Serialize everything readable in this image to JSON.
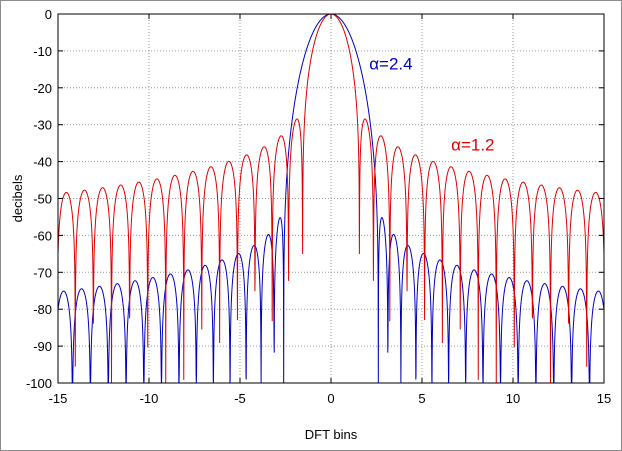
{
  "chart_data": {
    "type": "line",
    "title": "",
    "xlabel": "DFT bins",
    "ylabel": "decibels",
    "xlim": [
      -15,
      15
    ],
    "ylim": [
      -100,
      0
    ],
    "x_ticks": [
      -15,
      -10,
      -5,
      0,
      5,
      10,
      15
    ],
    "y_ticks": [
      0,
      -10,
      -20,
      -30,
      -40,
      -50,
      -60,
      -70,
      -80,
      -90,
      -100
    ],
    "grid": true,
    "series": [
      {
        "name": "α=2.4",
        "color": "#0000c0",
        "alpha": 2.4,
        "main_lobe_null_bins": 2.6,
        "sidelobe_peaks_db": [
          {
            "x": 3.2,
            "y": -56
          },
          {
            "x": 4.1,
            "y": -61
          },
          {
            "x": 5.1,
            "y": -64
          },
          {
            "x": 6.1,
            "y": -66
          },
          {
            "x": 7.1,
            "y": -68
          },
          {
            "x": 8.1,
            "y": -69
          },
          {
            "x": 10.1,
            "y": -71
          },
          {
            "x": 12.1,
            "y": -73
          },
          {
            "x": 15.0,
            "y": -75
          }
        ]
      },
      {
        "name": "α=1.2",
        "color": "#e00000",
        "alpha": 1.2,
        "main_lobe_null_bins": 1.6,
        "sidelobe_peaks_db": [
          {
            "x": 2.1,
            "y": -31
          },
          {
            "x": 3.1,
            "y": -36
          },
          {
            "x": 4.1,
            "y": -39
          },
          {
            "x": 5.1,
            "y": -41
          },
          {
            "x": 6.1,
            "y": -43
          },
          {
            "x": 8.1,
            "y": -45
          },
          {
            "x": 10.1,
            "y": -46
          },
          {
            "x": 12.1,
            "y": -47
          },
          {
            "x": 15.0,
            "y": -48
          }
        ]
      }
    ],
    "annotations": [
      {
        "text": "α=2.4",
        "series": 0,
        "x": 2.1,
        "y": -15
      },
      {
        "text": "α=1.2",
        "series": 1,
        "x": 6.6,
        "y": -37
      }
    ]
  }
}
